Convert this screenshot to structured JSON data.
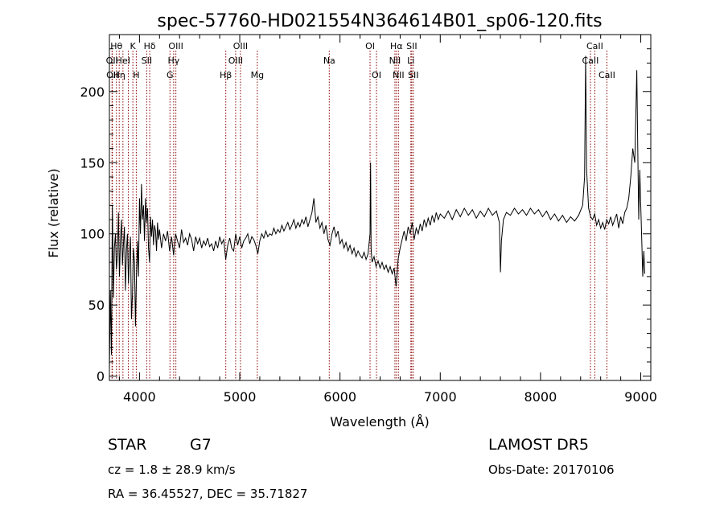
{
  "chart_data": {
    "type": "line",
    "title": "spec-57760-HD021554N364614B01_sp06-120.fits",
    "xlabel": "Wavelength (Å)",
    "ylabel": "Flux (relative)",
    "xlim": [
      3700,
      9100
    ],
    "ylim": [
      -3,
      240
    ],
    "x_ticks": [
      4000,
      5000,
      6000,
      7000,
      8000,
      9000
    ],
    "y_ticks": [
      0,
      50,
      100,
      150,
      200
    ],
    "grid": false,
    "line_color": "#000000",
    "marker_color": "#8b0000",
    "spectrum": [
      [
        3700,
        5
      ],
      [
        3710,
        60
      ],
      [
        3720,
        15
      ],
      [
        3730,
        120
      ],
      [
        3740,
        55
      ],
      [
        3750,
        90
      ],
      [
        3760,
        100
      ],
      [
        3770,
        75
      ],
      [
        3780,
        85
      ],
      [
        3790,
        115
      ],
      [
        3800,
        70
      ],
      [
        3810,
        95
      ],
      [
        3820,
        110
      ],
      [
        3830,
        78
      ],
      [
        3840,
        92
      ],
      [
        3850,
        105
      ],
      [
        3860,
        60
      ],
      [
        3870,
        88
      ],
      [
        3880,
        100
      ],
      [
        3890,
        65
      ],
      [
        3900,
        85
      ],
      [
        3910,
        98
      ],
      [
        3920,
        40
      ],
      [
        3930,
        58
      ],
      [
        3940,
        90
      ],
      [
        3950,
        80
      ],
      [
        3960,
        35
      ],
      [
        3970,
        72
      ],
      [
        3980,
        95
      ],
      [
        3990,
        70
      ],
      [
        4000,
        125
      ],
      [
        4010,
        100
      ],
      [
        4020,
        135
      ],
      [
        4030,
        110
      ],
      [
        4040,
        120
      ],
      [
        4050,
        95
      ],
      [
        4060,
        125
      ],
      [
        4070,
        108
      ],
      [
        4080,
        118
      ],
      [
        4090,
        90
      ],
      [
        4100,
        80
      ],
      [
        4110,
        112
      ],
      [
        4120,
        98
      ],
      [
        4130,
        110
      ],
      [
        4140,
        92
      ],
      [
        4150,
        106
      ],
      [
        4160,
        102
      ],
      [
        4170,
        88
      ],
      [
        4180,
        108
      ],
      [
        4190,
        96
      ],
      [
        4200,
        103
      ],
      [
        4220,
        90
      ],
      [
        4240,
        100
      ],
      [
        4260,
        95
      ],
      [
        4280,
        102
      ],
      [
        4300,
        88
      ],
      [
        4320,
        98
      ],
      [
        4340,
        85
      ],
      [
        4360,
        100
      ],
      [
        4380,
        95
      ],
      [
        4400,
        90
      ],
      [
        4420,
        103
      ],
      [
        4440,
        94
      ],
      [
        4460,
        97
      ],
      [
        4480,
        92
      ],
      [
        4500,
        100
      ],
      [
        4520,
        96
      ],
      [
        4540,
        88
      ],
      [
        4560,
        98
      ],
      [
        4580,
        93
      ],
      [
        4600,
        97
      ],
      [
        4620,
        90
      ],
      [
        4640,
        95
      ],
      [
        4660,
        92
      ],
      [
        4680,
        97
      ],
      [
        4700,
        91
      ],
      [
        4720,
        93
      ],
      [
        4740,
        88
      ],
      [
        4760,
        95
      ],
      [
        4780,
        90
      ],
      [
        4800,
        98
      ],
      [
        4820,
        93
      ],
      [
        4840,
        96
      ],
      [
        4860,
        82
      ],
      [
        4880,
        92
      ],
      [
        4900,
        97
      ],
      [
        4920,
        90
      ],
      [
        4940,
        88
      ],
      [
        4960,
        100
      ],
      [
        4980,
        92
      ],
      [
        5000,
        98
      ],
      [
        5020,
        90
      ],
      [
        5040,
        95
      ],
      [
        5060,
        97
      ],
      [
        5080,
        100
      ],
      [
        5100,
        93
      ],
      [
        5120,
        98
      ],
      [
        5140,
        96
      ],
      [
        5160,
        92
      ],
      [
        5180,
        86
      ],
      [
        5200,
        95
      ],
      [
        5220,
        100
      ],
      [
        5240,
        97
      ],
      [
        5260,
        102
      ],
      [
        5280,
        98
      ],
      [
        5300,
        100
      ],
      [
        5320,
        99
      ],
      [
        5340,
        104
      ],
      [
        5360,
        100
      ],
      [
        5380,
        103
      ],
      [
        5400,
        101
      ],
      [
        5420,
        106
      ],
      [
        5440,
        102
      ],
      [
        5460,
        105
      ],
      [
        5480,
        108
      ],
      [
        5500,
        103
      ],
      [
        5520,
        106
      ],
      [
        5540,
        110
      ],
      [
        5560,
        104
      ],
      [
        5580,
        108
      ],
      [
        5600,
        105
      ],
      [
        5620,
        110
      ],
      [
        5640,
        107
      ],
      [
        5660,
        112
      ],
      [
        5680,
        105
      ],
      [
        5700,
        110
      ],
      [
        5720,
        115
      ],
      [
        5740,
        125
      ],
      [
        5760,
        108
      ],
      [
        5780,
        112
      ],
      [
        5800,
        104
      ],
      [
        5820,
        108
      ],
      [
        5840,
        100
      ],
      [
        5860,
        106
      ],
      [
        5880,
        96
      ],
      [
        5900,
        92
      ],
      [
        5920,
        100
      ],
      [
        5940,
        105
      ],
      [
        5960,
        98
      ],
      [
        5980,
        102
      ],
      [
        6000,
        93
      ],
      [
        6020,
        96
      ],
      [
        6040,
        90
      ],
      [
        6060,
        94
      ],
      [
        6080,
        88
      ],
      [
        6100,
        92
      ],
      [
        6120,
        86
      ],
      [
        6140,
        90
      ],
      [
        6160,
        84
      ],
      [
        6180,
        88
      ],
      [
        6200,
        85
      ],
      [
        6220,
        83
      ],
      [
        6240,
        87
      ],
      [
        6260,
        82
      ],
      [
        6280,
        86
      ],
      [
        6300,
        100
      ],
      [
        6305,
        150
      ],
      [
        6310,
        90
      ],
      [
        6320,
        80
      ],
      [
        6340,
        84
      ],
      [
        6360,
        77
      ],
      [
        6380,
        81
      ],
      [
        6400,
        76
      ],
      [
        6420,
        80
      ],
      [
        6440,
        75
      ],
      [
        6460,
        78
      ],
      [
        6480,
        73
      ],
      [
        6500,
        77
      ],
      [
        6520,
        72
      ],
      [
        6540,
        76
      ],
      [
        6560,
        63
      ],
      [
        6570,
        72
      ],
      [
        6580,
        82
      ],
      [
        6600,
        90
      ],
      [
        6620,
        96
      ],
      [
        6640,
        102
      ],
      [
        6660,
        95
      ],
      [
        6680,
        105
      ],
      [
        6700,
        100
      ],
      [
        6720,
        108
      ],
      [
        6740,
        96
      ],
      [
        6760,
        104
      ],
      [
        6780,
        100
      ],
      [
        6800,
        107
      ],
      [
        6820,
        102
      ],
      [
        6840,
        110
      ],
      [
        6860,
        105
      ],
      [
        6880,
        111
      ],
      [
        6900,
        106
      ],
      [
        6920,
        113
      ],
      [
        6940,
        108
      ],
      [
        6960,
        115
      ],
      [
        6980,
        110
      ],
      [
        7000,
        114
      ],
      [
        7040,
        111
      ],
      [
        7080,
        116
      ],
      [
        7120,
        110
      ],
      [
        7160,
        117
      ],
      [
        7200,
        112
      ],
      [
        7240,
        118
      ],
      [
        7280,
        113
      ],
      [
        7320,
        117
      ],
      [
        7360,
        111
      ],
      [
        7400,
        116
      ],
      [
        7440,
        112
      ],
      [
        7480,
        118
      ],
      [
        7520,
        113
      ],
      [
        7560,
        116
      ],
      [
        7590,
        108
      ],
      [
        7600,
        73
      ],
      [
        7610,
        95
      ],
      [
        7630,
        110
      ],
      [
        7660,
        115
      ],
      [
        7700,
        113
      ],
      [
        7740,
        118
      ],
      [
        7780,
        114
      ],
      [
        7820,
        117
      ],
      [
        7860,
        113
      ],
      [
        7900,
        118
      ],
      [
        7940,
        114
      ],
      [
        7980,
        117
      ],
      [
        8020,
        112
      ],
      [
        8060,
        116
      ],
      [
        8100,
        110
      ],
      [
        8140,
        114
      ],
      [
        8180,
        109
      ],
      [
        8220,
        113
      ],
      [
        8260,
        108
      ],
      [
        8300,
        112
      ],
      [
        8340,
        109
      ],
      [
        8380,
        113
      ],
      [
        8420,
        120
      ],
      [
        8440,
        140
      ],
      [
        8450,
        225
      ],
      [
        8460,
        145
      ],
      [
        8480,
        118
      ],
      [
        8500,
        112
      ],
      [
        8520,
        110
      ],
      [
        8540,
        114
      ],
      [
        8560,
        106
      ],
      [
        8580,
        110
      ],
      [
        8600,
        104
      ],
      [
        8620,
        108
      ],
      [
        8640,
        103
      ],
      [
        8660,
        110
      ],
      [
        8680,
        107
      ],
      [
        8700,
        112
      ],
      [
        8720,
        106
      ],
      [
        8740,
        110
      ],
      [
        8760,
        114
      ],
      [
        8780,
        104
      ],
      [
        8800,
        112
      ],
      [
        8820,
        107
      ],
      [
        8840,
        115
      ],
      [
        8860,
        118
      ],
      [
        8880,
        125
      ],
      [
        8900,
        140
      ],
      [
        8920,
        160
      ],
      [
        8940,
        150
      ],
      [
        8960,
        215
      ],
      [
        8970,
        160
      ],
      [
        8980,
        110
      ],
      [
        8990,
        145
      ],
      [
        9000,
        120
      ],
      [
        9010,
        95
      ],
      [
        9020,
        70
      ],
      [
        9030,
        88
      ],
      [
        9040,
        72
      ]
    ],
    "line_markers": [
      {
        "x": 3726,
        "label": "OII",
        "row": 1
      },
      {
        "x": 3730,
        "label": "OII",
        "row": 2
      },
      {
        "x": 3770,
        "label": "Hθ",
        "row": 0
      },
      {
        "x": 3798,
        "label": "Hη",
        "row": 2
      },
      {
        "x": 3835,
        "label": "HeI",
        "row": 1
      },
      {
        "x": 3889,
        "label": "",
        "row": 0
      },
      {
        "x": 3934,
        "label": "K",
        "row": 0
      },
      {
        "x": 3968,
        "label": "H",
        "row": 2
      },
      {
        "x": 4072,
        "label": "SII",
        "row": 1
      },
      {
        "x": 4102,
        "label": "Hδ",
        "row": 0
      },
      {
        "x": 4304,
        "label": "G",
        "row": 2
      },
      {
        "x": 4341,
        "label": "Hγ",
        "row": 1
      },
      {
        "x": 4363,
        "label": "OIII",
        "row": 0
      },
      {
        "x": 4861,
        "label": "Hβ",
        "row": 2
      },
      {
        "x": 4959,
        "label": "OIII",
        "row": 1
      },
      {
        "x": 5007,
        "label": "OIII",
        "row": 0
      },
      {
        "x": 5175,
        "label": "Mg",
        "row": 2
      },
      {
        "x": 5893,
        "label": "Na",
        "row": 1
      },
      {
        "x": 6300,
        "label": "OI",
        "row": 0
      },
      {
        "x": 6364,
        "label": "OI",
        "row": 2
      },
      {
        "x": 6548,
        "label": "NII",
        "row": 1
      },
      {
        "x": 6563,
        "label": "Hα",
        "row": 0
      },
      {
        "x": 6583,
        "label": "NII",
        "row": 2
      },
      {
        "x": 6707,
        "label": "Li",
        "row": 1
      },
      {
        "x": 6716,
        "label": "SII",
        "row": 0
      },
      {
        "x": 6731,
        "label": "SII",
        "row": 2
      },
      {
        "x": 8498,
        "label": "CaII",
        "row": 1
      },
      {
        "x": 8542,
        "label": "CaII",
        "row": 0
      },
      {
        "x": 8662,
        "label": "CaII",
        "row": 2
      }
    ]
  },
  "info": {
    "object_class": "STAR",
    "subclass": "G7",
    "survey": "LAMOST DR5",
    "redshift": "cz = 1.8 ± 28.9 km/s",
    "obs_date": "Obs-Date: 20170106",
    "coords": "RA =  36.45527, DEC =  35.71827"
  }
}
